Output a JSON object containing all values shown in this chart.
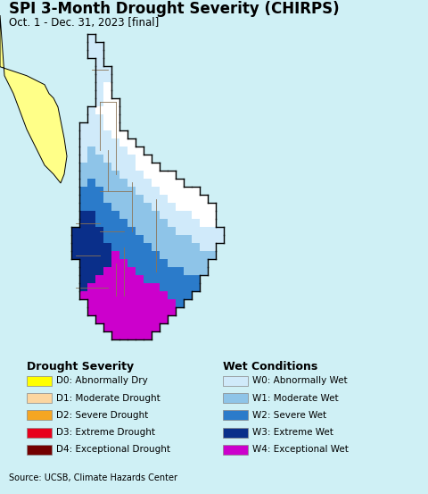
{
  "title": "SPI 3-Month Drought Severity (CHIRPS)",
  "subtitle": "Oct. 1 - Dec. 31, 2023 [final]",
  "background_color": "#cff0f5",
  "map_background": "#cff0f5",
  "legend_background": "#ffffff",
  "source_text": "Source: UCSB, Climate Hazards Center",
  "source_bar_color": "#c8c8c8",
  "drought_labels": [
    "D0: Abnormally Dry",
    "D1: Moderate Drought",
    "D2: Severe Drought",
    "D3: Extreme Drought",
    "D4: Exceptional Drought"
  ],
  "drought_colors": [
    "#ffff00",
    "#fcd6a0",
    "#f5a623",
    "#e8001c",
    "#730000"
  ],
  "wet_labels": [
    "W0: Abnormally Wet",
    "W1: Moderate Wet",
    "W2: Severe Wet",
    "W3: Extreme Wet",
    "W4: Exceptional Wet"
  ],
  "wet_colors": [
    "#d0eafa",
    "#8ec4e8",
    "#2b7bca",
    "#0a2f8a",
    "#cc00cc"
  ],
  "title_fontsize": 12,
  "subtitle_fontsize": 8.5,
  "legend_title_fontsize": 9,
  "legend_label_fontsize": 7.5,
  "source_fontsize": 7,
  "india_yellow": "#ffff88",
  "sri_lanka_border": "#000000",
  "province_border": "#8B7355",
  "coast_outline": "#000000"
}
